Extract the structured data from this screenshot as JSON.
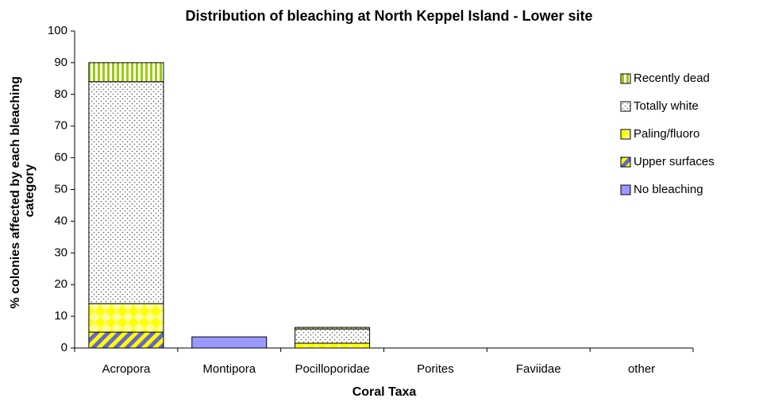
{
  "chart_data": {
    "type": "stacked_bar",
    "title": "Distribution of bleaching at North Keppel Island - Lower site",
    "xlabel": "Coral Taxa",
    "ylabel": [
      "% colonies affected by each bleaching",
      "category"
    ],
    "categories": [
      "Acropora",
      "Montipora",
      "Pocilloporidae",
      "Porites",
      "Faviidae",
      "other"
    ],
    "series": [
      {
        "name": "No bleaching",
        "color": "#9999ff",
        "values": [
          0,
          3.5,
          0,
          0,
          0,
          0
        ]
      },
      {
        "name": "Upper surfaces",
        "color": "#ffff00",
        "values": [
          5,
          0,
          0,
          0,
          0,
          0
        ]
      },
      {
        "name": "Paling/fluoro",
        "color": "#ffff00",
        "values": [
          9,
          0,
          1.5,
          0,
          0,
          0
        ]
      },
      {
        "name": "Totally white",
        "color": "#ffffff",
        "values": [
          70,
          0,
          4.5,
          0,
          0,
          0
        ]
      },
      {
        "name": "Recently dead",
        "color": "#99cc00",
        "values": [
          6,
          0,
          0.5,
          0,
          0,
          0
        ]
      }
    ],
    "ylim": [
      0,
      100
    ],
    "yticks": [
      0,
      10,
      20,
      30,
      40,
      50,
      60,
      70,
      80,
      90,
      100
    ],
    "grid": false,
    "legend": "right"
  }
}
